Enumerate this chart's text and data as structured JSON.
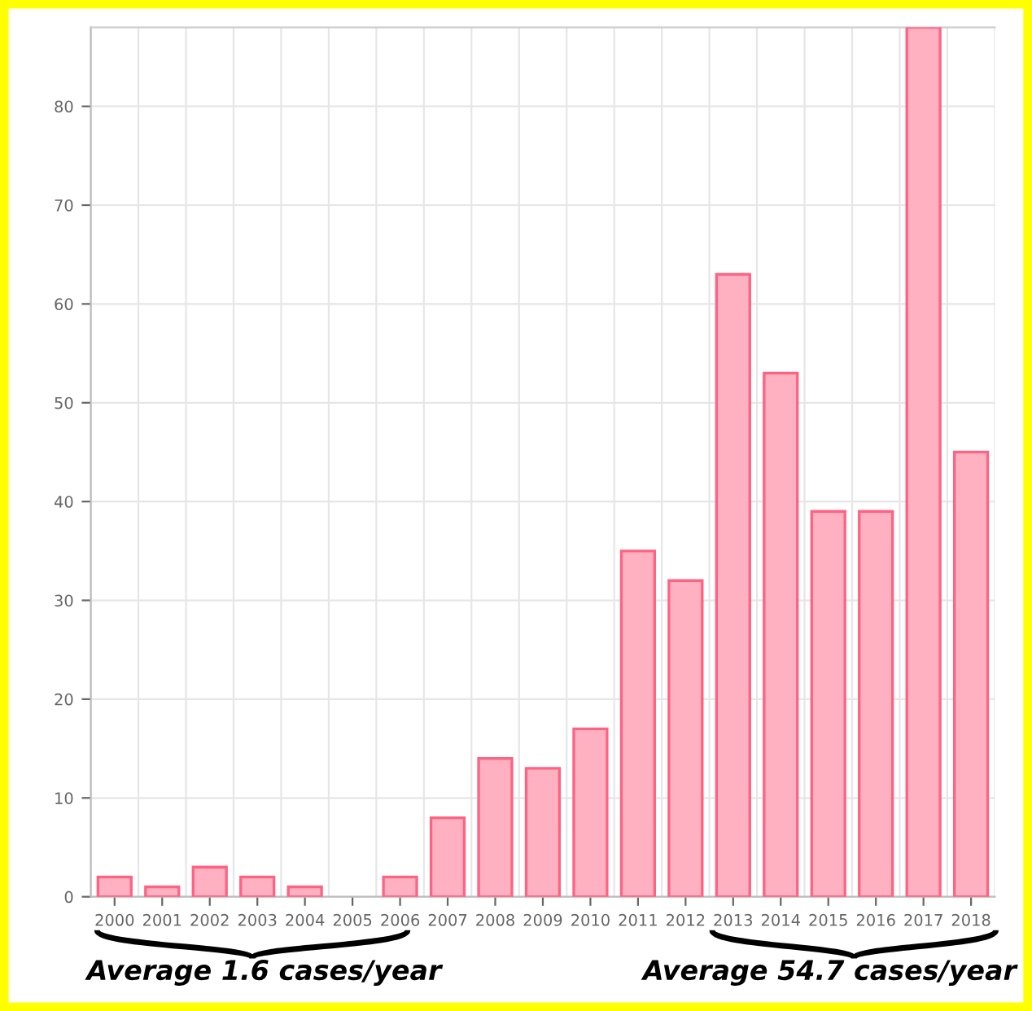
{
  "chart_data": {
    "type": "bar",
    "categories": [
      "2000",
      "2001",
      "2002",
      "2003",
      "2004",
      "2005",
      "2006",
      "2007",
      "2008",
      "2009",
      "2010",
      "2011",
      "2012",
      "2013",
      "2014",
      "2015",
      "2016",
      "2017",
      "2018"
    ],
    "values": [
      2,
      1,
      3,
      2,
      1,
      0,
      2,
      8,
      14,
      13,
      17,
      35,
      32,
      63,
      53,
      39,
      39,
      88,
      45
    ],
    "color": "#ffb1c1",
    "ylim": [
      0,
      88
    ],
    "yticks": [
      0,
      10,
      20,
      30,
      40,
      50,
      60,
      70,
      80
    ],
    "grid": true,
    "annotations": [
      "Average 1.6 cases/year",
      "Average 54.7 cases/year"
    ]
  }
}
